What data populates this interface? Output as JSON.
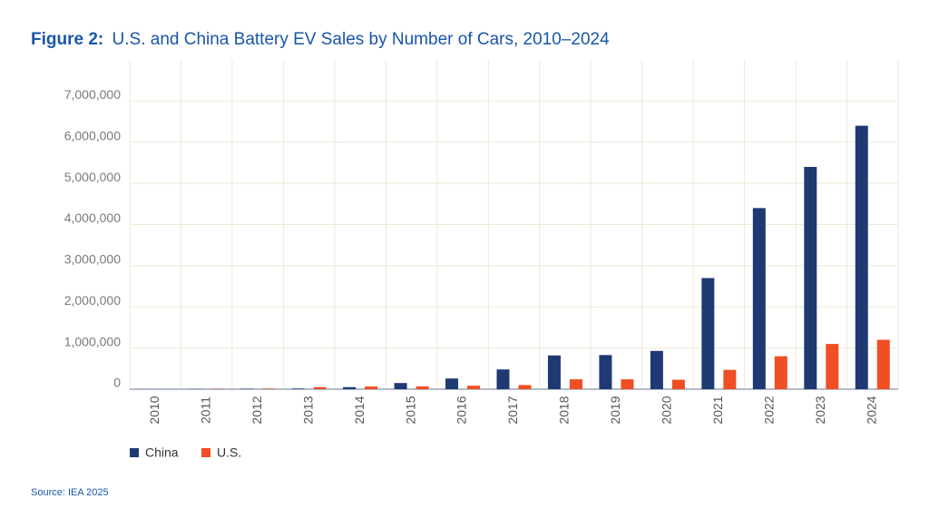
{
  "chart_data": {
    "type": "bar",
    "figure_label": "Figure 2:",
    "title": "U.S. and China Battery EV Sales by Number of Cars, 2010–2024",
    "source": "Source: IEA 2025",
    "categories": [
      "2010",
      "2011",
      "2012",
      "2013",
      "2014",
      "2015",
      "2016",
      "2017",
      "2018",
      "2019",
      "2020",
      "2021",
      "2022",
      "2023",
      "2024"
    ],
    "series": [
      {
        "name": "China",
        "color": "#1f3a73",
        "values": [
          1000,
          5000,
          10000,
          15000,
          50000,
          150000,
          260000,
          480000,
          820000,
          830000,
          930000,
          2700000,
          4400000,
          5400000,
          6400000
        ]
      },
      {
        "name": "U.S.",
        "color": "#f04e23",
        "values": [
          0,
          10000,
          15000,
          50000,
          65000,
          70000,
          85000,
          100000,
          240000,
          240000,
          230000,
          470000,
          800000,
          1100000,
          1200000
        ]
      }
    ],
    "ylim": [
      0,
      8000000
    ],
    "yticks": [
      0,
      {
        "value": 1000000,
        "label": "1,000,000"
      },
      {
        "value": 2000000,
        "label": "2,000,000"
      },
      {
        "value": 3000000,
        "label": "3,000,000"
      },
      {
        "value": 4000000,
        "label": "4,000,000"
      },
      {
        "value": 5000000,
        "label": "5,000,000"
      },
      {
        "value": 6000000,
        "label": "6,000,000"
      },
      {
        "value": 7000000,
        "label": "7,000,000"
      }
    ],
    "grid": true,
    "legend": "bottom-left"
  }
}
